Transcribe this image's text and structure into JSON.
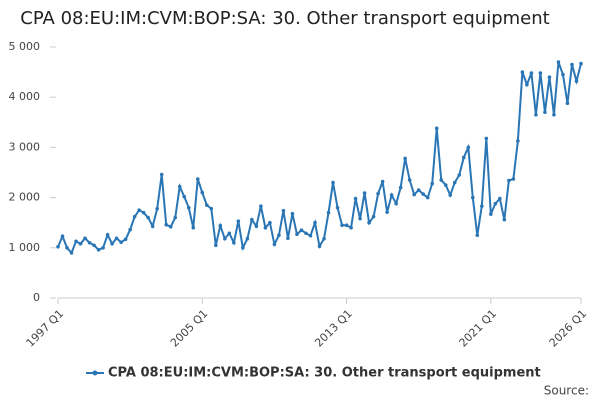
{
  "chart_data": {
    "type": "line",
    "title": "CPA 08:EU:IM:CVM:BOP:SA: 30. Other transport equipment",
    "source": "Source:",
    "categories": [
      "1997 Q1",
      null,
      null,
      null,
      null,
      null,
      null,
      null,
      null,
      null,
      null,
      null,
      null,
      null,
      null,
      null,
      null,
      null,
      null,
      null,
      null,
      null,
      null,
      null,
      null,
      null,
      null,
      null,
      null,
      null,
      null,
      null,
      "2005 Q1",
      null,
      null,
      null,
      null,
      null,
      null,
      null,
      null,
      null,
      null,
      null,
      null,
      null,
      null,
      null,
      null,
      null,
      null,
      null,
      null,
      null,
      null,
      null,
      null,
      null,
      null,
      null,
      null,
      null,
      null,
      null,
      "2013 Q1",
      null,
      null,
      null,
      null,
      null,
      null,
      null,
      null,
      null,
      null,
      null,
      null,
      null,
      null,
      null,
      null,
      null,
      null,
      null,
      null,
      null,
      null,
      null,
      null,
      null,
      null,
      null,
      null,
      null,
      null,
      null,
      "2021 Q1",
      null,
      null,
      null,
      null,
      null,
      null,
      null,
      null,
      null,
      null,
      null,
      null,
      null,
      null,
      null,
      null,
      null,
      null,
      null,
      "2026 Q1"
    ],
    "series": [
      {
        "name": "CPA 08:EU:IM:CVM:BOP:SA: 30. Other transport equipment",
        "color": "#2a76b5",
        "values": [
          1020,
          1230,
          1000,
          900,
          1130,
          1080,
          1190,
          1100,
          1050,
          960,
          1000,
          1260,
          1080,
          1190,
          1110,
          1170,
          1360,
          1620,
          1750,
          1700,
          1600,
          1430,
          1780,
          2460,
          1460,
          1420,
          1600,
          2220,
          2020,
          1800,
          1400,
          2370,
          2100,
          1850,
          1780,
          1050,
          1440,
          1180,
          1290,
          1100,
          1530,
          1000,
          1180,
          1560,
          1430,
          1830,
          1400,
          1500,
          1070,
          1250,
          1740,
          1190,
          1680,
          1270,
          1350,
          1290,
          1240,
          1500,
          1030,
          1180,
          1700,
          2300,
          1800,
          1450,
          1450,
          1400,
          1980,
          1580,
          2090,
          1500,
          1620,
          2080,
          2320,
          1710,
          2050,
          1880,
          2200,
          2780,
          2350,
          2060,
          2150,
          2070,
          2000,
          2280,
          3380,
          2350,
          2250,
          2050,
          2300,
          2450,
          2800,
          3000,
          2000,
          1250,
          1830,
          3180,
          1670,
          1880,
          1980,
          1560,
          2340,
          2370,
          3130,
          4500,
          4250,
          4480,
          3650,
          4480,
          3700,
          4400,
          3650,
          4700,
          4450,
          3880,
          4650,
          4320,
          4670
        ]
      }
    ],
    "ylim": [
      0,
      5000
    ],
    "yticks": [
      0,
      {
        "value": 1000,
        "label": "1 000"
      },
      {
        "value": 2000,
        "label": "2 000"
      },
      {
        "value": 3000,
        "label": "3 000"
      },
      {
        "value": 4000,
        "label": "4 000"
      },
      {
        "value": 5000,
        "label": "5 000"
      }
    ],
    "grid": false
  }
}
